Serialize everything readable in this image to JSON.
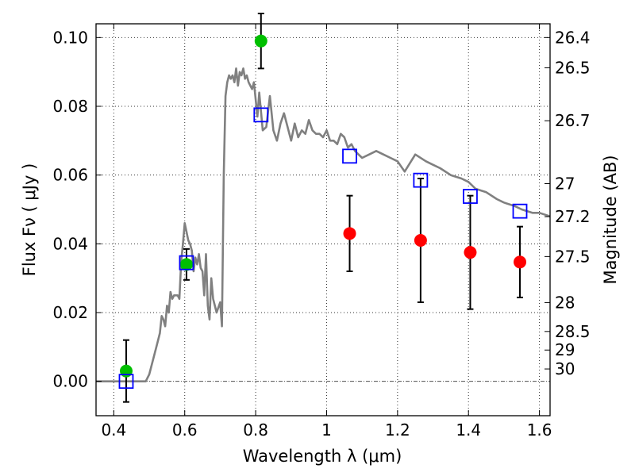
{
  "chart_data": {
    "type": "scatter",
    "xlabel": "Wavelength  λ (μm)",
    "ylabel": "Flux  Fν  ( μJy )",
    "ylabel_right": "Magnitude (AB)",
    "xlim": [
      0.35,
      1.63
    ],
    "ylim": [
      -0.01,
      0.104
    ],
    "grid": true,
    "x_ticks": [
      0.4,
      0.6,
      0.8,
      1.0,
      1.2,
      1.4,
      1.6
    ],
    "x_tick_labels": [
      "0.4",
      "0.6",
      "0.8",
      "1",
      "1.2",
      "1.4",
      "1.6"
    ],
    "y_ticks": [
      0.0,
      0.02,
      0.04,
      0.06,
      0.08,
      0.1
    ],
    "y_tick_labels": [
      "0.00",
      "0.02",
      "0.04",
      "0.06",
      "0.08",
      "0.10"
    ],
    "magnitude_ticks": [
      {
        "label": "26.4",
        "flux": 0.1
      },
      {
        "label": "26.5",
        "flux": 0.0912
      },
      {
        "label": "26.7",
        "flux": 0.0758
      },
      {
        "label": "27",
        "flux": 0.0575
      },
      {
        "label": "27.2",
        "flux": 0.0479
      },
      {
        "label": "27.5",
        "flux": 0.0363
      },
      {
        "label": "28",
        "flux": 0.0229
      },
      {
        "label": "28.5",
        "flux": 0.0145
      },
      {
        "label": "29",
        "flux": 0.0091
      },
      {
        "label": "30",
        "flux": 0.0036
      }
    ],
    "series": [
      {
        "kind": "spectrum",
        "color": "#808080",
        "x": [
          0.35,
          0.45,
          0.475,
          0.49,
          0.5,
          0.51,
          0.52,
          0.53,
          0.535,
          0.54,
          0.545,
          0.55,
          0.555,
          0.56,
          0.565,
          0.57,
          0.58,
          0.585,
          0.59,
          0.595,
          0.6,
          0.61,
          0.615,
          0.62,
          0.625,
          0.63,
          0.635,
          0.64,
          0.645,
          0.65,
          0.655,
          0.66,
          0.665,
          0.67,
          0.675,
          0.68,
          0.69,
          0.7,
          0.705,
          0.71,
          0.715,
          0.72,
          0.725,
          0.73,
          0.735,
          0.74,
          0.745,
          0.75,
          0.755,
          0.76,
          0.765,
          0.77,
          0.775,
          0.78,
          0.785,
          0.79,
          0.795,
          0.8,
          0.805,
          0.81,
          0.82,
          0.83,
          0.84,
          0.85,
          0.86,
          0.87,
          0.88,
          0.89,
          0.9,
          0.91,
          0.92,
          0.93,
          0.94,
          0.95,
          0.96,
          0.97,
          0.98,
          0.99,
          1.0,
          1.01,
          1.02,
          1.03,
          1.04,
          1.05,
          1.06,
          1.07,
          1.08,
          1.09,
          1.1,
          1.12,
          1.14,
          1.16,
          1.18,
          1.2,
          1.22,
          1.25,
          1.28,
          1.3,
          1.32,
          1.35,
          1.38,
          1.4,
          1.42,
          1.45,
          1.48,
          1.5,
          1.53,
          1.55,
          1.58,
          1.6,
          1.63
        ],
        "y": [
          0.0,
          0.0,
          0.0,
          0.0,
          0.002,
          0.006,
          0.01,
          0.014,
          0.019,
          0.018,
          0.016,
          0.022,
          0.02,
          0.026,
          0.024,
          0.025,
          0.025,
          0.024,
          0.035,
          0.04,
          0.046,
          0.041,
          0.04,
          0.038,
          0.032,
          0.036,
          0.034,
          0.037,
          0.033,
          0.032,
          0.025,
          0.037,
          0.022,
          0.018,
          0.03,
          0.024,
          0.02,
          0.023,
          0.016,
          0.06,
          0.083,
          0.087,
          0.089,
          0.088,
          0.089,
          0.087,
          0.091,
          0.086,
          0.09,
          0.089,
          0.091,
          0.088,
          0.089,
          0.087,
          0.086,
          0.085,
          0.087,
          0.082,
          0.077,
          0.084,
          0.073,
          0.074,
          0.083,
          0.073,
          0.07,
          0.075,
          0.078,
          0.074,
          0.07,
          0.075,
          0.071,
          0.073,
          0.072,
          0.076,
          0.073,
          0.072,
          0.072,
          0.071,
          0.073,
          0.07,
          0.07,
          0.069,
          0.072,
          0.071,
          0.068,
          0.069,
          0.067,
          0.066,
          0.065,
          0.066,
          0.067,
          0.066,
          0.065,
          0.064,
          0.061,
          0.066,
          0.064,
          0.063,
          0.062,
          0.06,
          0.059,
          0.058,
          0.056,
          0.055,
          0.053,
          0.052,
          0.051,
          0.05,
          0.049,
          0.049,
          0.048
        ]
      },
      {
        "kind": "points_green",
        "color": "#00bf00",
        "x": [
          0.435,
          0.605,
          0.815
        ],
        "y": [
          0.003,
          0.034,
          0.099
        ],
        "yerr": [
          0.009,
          0.0045,
          0.008
        ]
      },
      {
        "kind": "points_red",
        "color": "#ff0000",
        "x": [
          1.065,
          1.265,
          1.405,
          1.545
        ],
        "y": [
          0.043,
          0.041,
          0.0375,
          0.0347
        ],
        "yerr": [
          0.011,
          0.018,
          0.0165,
          0.0103
        ]
      },
      {
        "kind": "model_squares",
        "color": "#0000ff",
        "x": [
          0.435,
          0.605,
          0.815,
          1.065,
          1.265,
          1.405,
          1.545
        ],
        "y": [
          0.0,
          0.0345,
          0.0775,
          0.0655,
          0.0585,
          0.0538,
          0.0495
        ]
      }
    ]
  }
}
